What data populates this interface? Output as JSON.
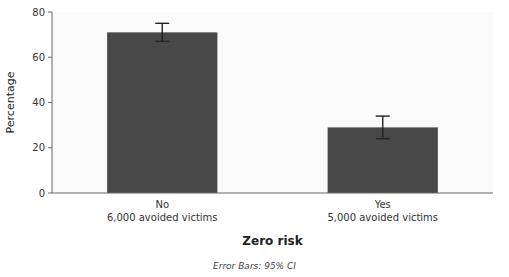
{
  "chart_data": {
    "type": "bar",
    "subtitle": "Error Bars: 95% CI",
    "xlabel": "Zero risk",
    "ylabel": "Percentage",
    "categories": [
      "No\n6,000 avoided victims",
      "Yes\n5,000 avoided victims"
    ],
    "values": [
      71.0,
      29.0
    ],
    "errors": [
      4.0,
      5.0
    ],
    "color": "#484848",
    "ylim": [
      0,
      80
    ],
    "yticks": [
      0,
      20,
      40,
      60,
      80
    ],
    "grid": false
  }
}
